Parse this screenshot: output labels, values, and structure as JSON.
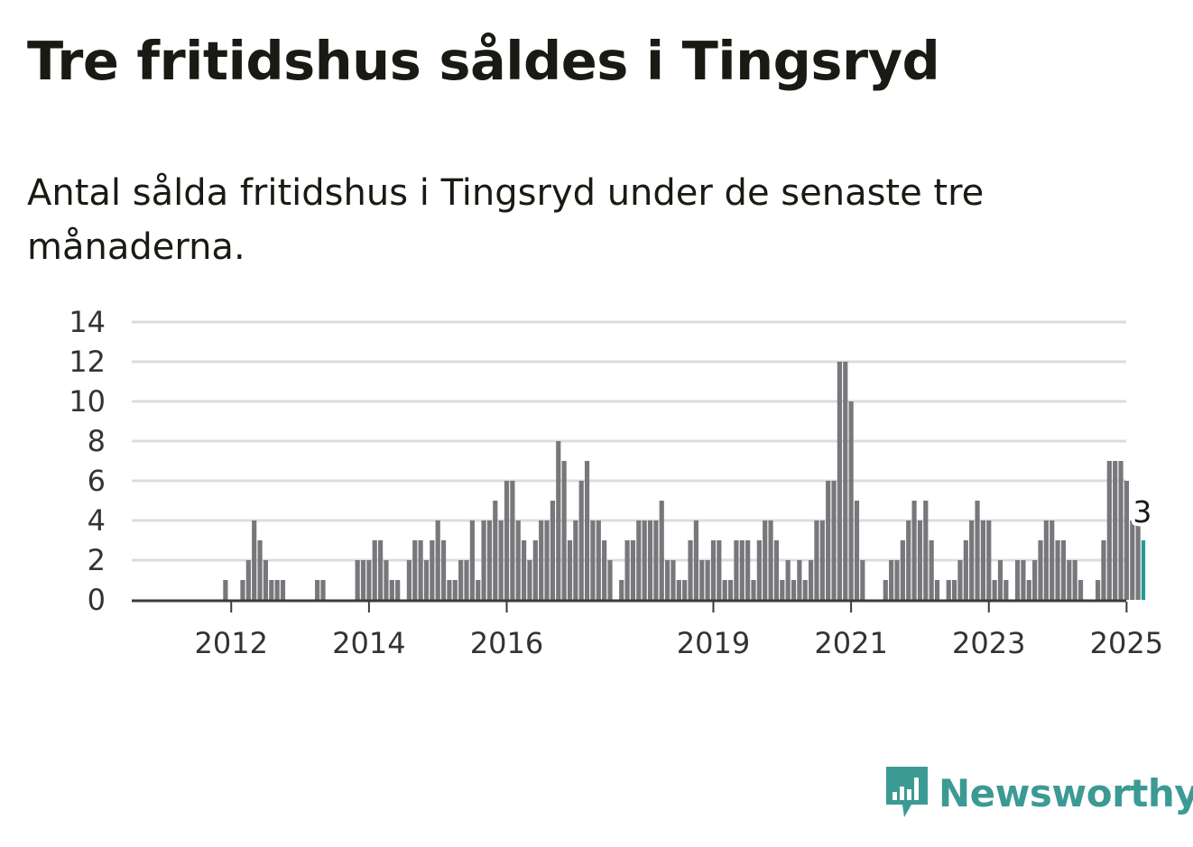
{
  "title": "Tre fritidshus såldes i Tingsryd",
  "subtitle": "Antal sålda fritidshus i Tingsryd under de senaste tre månaderna.",
  "brand": {
    "name": "Newsworthy",
    "icon": "newsworthy-logo-icon",
    "color": "#3c9a94"
  },
  "colors": {
    "bar": "#78787c",
    "highlight": "#1f9b94",
    "grid": "#dcdcdc"
  },
  "chart_data": {
    "type": "bar",
    "x_start": "2011-04",
    "x_end": "2025-01",
    "x_ticks": [
      "2012",
      "2014",
      "2016",
      "2019",
      "2021",
      "2023",
      "2025"
    ],
    "y_ticks": [
      "0",
      "2",
      "4",
      "6",
      "8",
      "10",
      "12",
      "14"
    ],
    "ylim": [
      0,
      14
    ],
    "grid": true,
    "highlight_last": true,
    "last_label": "3",
    "values": [
      0,
      0,
      0,
      0,
      0,
      0,
      0,
      0,
      1,
      0,
      0,
      1,
      2,
      4,
      3,
      2,
      1,
      1,
      1,
      0,
      0,
      0,
      0,
      0,
      1,
      1,
      0,
      0,
      0,
      0,
      0,
      2,
      2,
      2,
      3,
      3,
      2,
      1,
      1,
      0,
      2,
      3,
      3,
      2,
      3,
      4,
      3,
      1,
      1,
      2,
      2,
      4,
      1,
      4,
      4,
      5,
      4,
      6,
      6,
      4,
      3,
      2,
      3,
      4,
      4,
      5,
      8,
      7,
      3,
      4,
      6,
      7,
      4,
      4,
      3,
      2,
      0,
      1,
      3,
      3,
      4,
      4,
      4,
      4,
      5,
      2,
      2,
      1,
      1,
      3,
      4,
      2,
      2,
      3,
      3,
      1,
      1,
      3,
      3,
      3,
      1,
      3,
      4,
      4,
      3,
      1,
      2,
      1,
      2,
      1,
      2,
      4,
      4,
      6,
      6,
      12,
      12,
      10,
      5,
      2,
      0,
      0,
      0,
      1,
      2,
      2,
      3,
      4,
      5,
      4,
      5,
      3,
      1,
      0,
      1,
      1,
      2,
      3,
      4,
      5,
      4,
      4,
      1,
      2,
      1,
      0,
      2,
      2,
      1,
      2,
      3,
      4,
      4,
      3,
      3,
      2,
      2,
      1,
      0,
      0,
      1,
      3,
      7,
      7,
      7,
      6,
      4,
      4,
      3
    ]
  }
}
